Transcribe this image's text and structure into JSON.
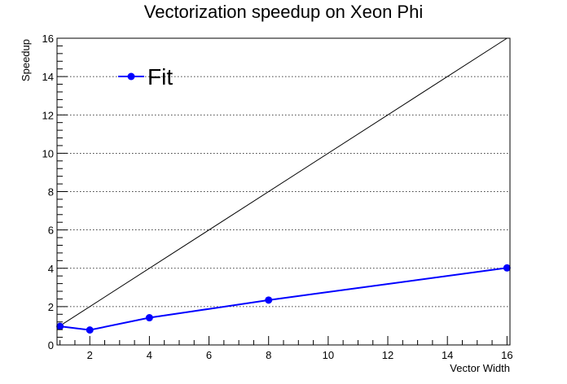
{
  "chart_data": {
    "type": "line",
    "title": "Vectorization speedup on Xeon Phi",
    "xlabel": "Vector Width",
    "ylabel": "Speedup",
    "xlim": [
      0.9,
      16.1
    ],
    "ylim": [
      0,
      16
    ],
    "x_ticks": [
      2,
      4,
      6,
      8,
      10,
      12,
      14,
      16
    ],
    "y_ticks": [
      0,
      2,
      4,
      6,
      8,
      10,
      12,
      14,
      16
    ],
    "grid": "horizontal dotted",
    "legend_position": "top-left",
    "series": [
      {
        "name": "Fit",
        "color": "#0000ff",
        "marker": "circle",
        "x": [
          1,
          2,
          4,
          8,
          16
        ],
        "y": [
          0.97,
          0.78,
          1.42,
          2.34,
          4.02
        ]
      }
    ],
    "reference_line": {
      "color": "#000000",
      "x": [
        1,
        16
      ],
      "y": [
        1,
        16
      ]
    }
  }
}
